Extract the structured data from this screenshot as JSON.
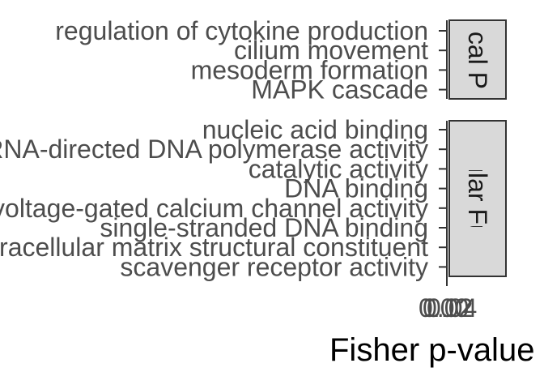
{
  "chart_data": {
    "type": "bar",
    "orientation": "horizontal",
    "xlabel": "Fisher p-value",
    "x_tick_labels": [
      "0.00",
      "0.02",
      "0.04"
    ],
    "facets": [
      {
        "strip_label": "Biological Process",
        "categories": [
          "regulation of cytokine production",
          "cilium movement",
          "mesoderm formation",
          "MAPK cascade"
        ],
        "values": [
          0,
          0,
          0,
          0
        ]
      },
      {
        "strip_label": "Molecular Function",
        "categories": [
          "nucleic acid binding",
          "RNA-directed DNA polymerase activity",
          "catalytic activity",
          "DNA binding",
          "voltage-gated calcium channel activity",
          "single-stranded DNA binding",
          "extracellular matrix structural constituent",
          "scavenger receptor activity"
        ],
        "values": [
          0,
          0,
          0,
          0,
          0,
          0,
          0,
          0
        ]
      }
    ],
    "grid": false,
    "legend": "none"
  }
}
